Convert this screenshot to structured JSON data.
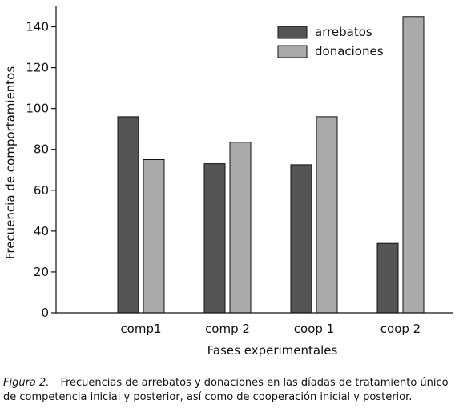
{
  "chart_data": {
    "type": "bar",
    "categories": [
      "comp1",
      "comp 2",
      "coop 1",
      "coop 2"
    ],
    "series": [
      {
        "name": "arrebatos",
        "values": [
          96,
          73,
          72.5,
          34
        ],
        "color": "#555555"
      },
      {
        "name": "donaciones",
        "values": [
          75,
          83.5,
          96,
          145
        ],
        "color": "#aaaaaa"
      }
    ],
    "title": "",
    "xlabel": "Fases experimentales",
    "ylabel": "Frecuencia de comportamientos",
    "ylim": [
      0,
      150
    ],
    "yticks": [
      0,
      20,
      40,
      60,
      80,
      100,
      120,
      140
    ],
    "grid": false,
    "legend_position": "top-right"
  },
  "caption": {
    "label": "Figura 2.",
    "text": "Frecuencias de arrebatos y donaciones en las díadas de tratamiento único de competencia inicial y posterior, así como de cooperación inicial y posterior."
  }
}
